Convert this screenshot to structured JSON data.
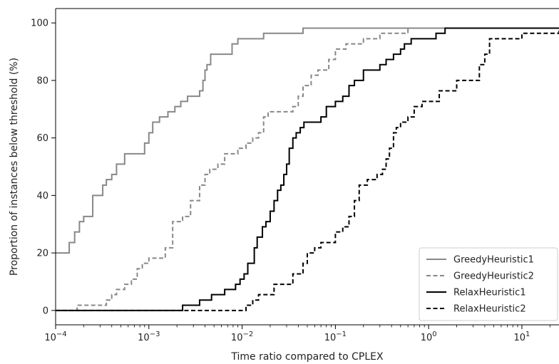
{
  "chart_data": {
    "type": "line",
    "xscale": "log",
    "xlim": [
      0.0001,
      25
    ],
    "ylim": [
      -5,
      105
    ],
    "xlabel": "Time ratio compared to CPLEX",
    "ylabel": "Proportion of instances below threshold (%)",
    "x_ticks": [
      {
        "value": 0.0001,
        "base": "10",
        "exp": "−4"
      },
      {
        "value": 0.001,
        "base": "10",
        "exp": "−3"
      },
      {
        "value": 0.01,
        "base": "10",
        "exp": "−2"
      },
      {
        "value": 0.1,
        "base": "10",
        "exp": "−1"
      },
      {
        "value": 1,
        "base": "10",
        "exp": "0"
      },
      {
        "value": 10,
        "base": "10",
        "exp": "1"
      }
    ],
    "y_ticks": [
      0,
      20,
      40,
      60,
      80,
      100
    ],
    "grid": false,
    "legend_position": "lower-right",
    "series": [
      {
        "name": "GreedyHeuristic1",
        "color": "#888888",
        "dash": "solid",
        "x": [
          0.0001,
          0.00013,
          0.00014,
          0.00016,
          0.00018,
          0.0002,
          0.00025,
          0.00032,
          0.00035,
          0.0004,
          0.00045,
          0.00055,
          0.00085,
          0.0009,
          0.001,
          0.0011,
          0.0013,
          0.0016,
          0.0019,
          0.0022,
          0.0026,
          0.0035,
          0.0038,
          0.004,
          0.0042,
          0.0046,
          0.0055,
          0.0078,
          0.009,
          0.011,
          0.017,
          0.028,
          0.045,
          0.32,
          0.5,
          25
        ],
        "y": [
          20,
          20,
          23.6,
          27.3,
          30.9,
          32.7,
          40,
          43.6,
          45.5,
          47.3,
          50.9,
          54.5,
          54.5,
          58.2,
          61.8,
          65.5,
          67.3,
          69.1,
          70.9,
          72.7,
          74.5,
          76.4,
          80,
          83.6,
          85.5,
          89.1,
          89.1,
          92.7,
          94.5,
          94.5,
          96.4,
          96.4,
          98.2,
          98.2,
          98.2,
          98.2
        ]
      },
      {
        "name": "GreedyHeuristic2",
        "color": "#888888",
        "dash": "dashed",
        "x": [
          0.0001,
          0.00013,
          0.00017,
          0.0003,
          0.00035,
          0.0004,
          0.00045,
          0.00055,
          0.00065,
          0.00075,
          0.00085,
          0.0009,
          0.001,
          0.0011,
          0.0015,
          0.0018,
          0.0023,
          0.0028,
          0.0035,
          0.004,
          0.0045,
          0.0055,
          0.0065,
          0.0075,
          0.009,
          0.011,
          0.013,
          0.015,
          0.017,
          0.019,
          0.024,
          0.035,
          0.04,
          0.045,
          0.055,
          0.065,
          0.085,
          0.1,
          0.13,
          0.2,
          0.3,
          0.6,
          25
        ],
        "y": [
          0,
          0,
          1.8,
          1.8,
          3.6,
          5.5,
          7.3,
          9.1,
          10.9,
          14.5,
          16.4,
          16.4,
          18.2,
          18.2,
          21.8,
          30.9,
          32.7,
          38.2,
          43.6,
          47.3,
          49.1,
          50.9,
          54.5,
          54.5,
          56.4,
          58.2,
          60,
          61.8,
          67.3,
          69.1,
          69.1,
          70.9,
          74.5,
          78.2,
          81.8,
          83.6,
          87.3,
          90.9,
          92.7,
          94.5,
          96.4,
          98.2,
          98.2
        ]
      },
      {
        "name": "RelaxHeuristic1",
        "color": "#000000",
        "dash": "solid",
        "x": [
          0.0001,
          0.0023,
          0.0035,
          0.0047,
          0.0065,
          0.0085,
          0.0095,
          0.0105,
          0.0115,
          0.0135,
          0.0145,
          0.0165,
          0.018,
          0.02,
          0.022,
          0.024,
          0.026,
          0.028,
          0.03,
          0.032,
          0.035,
          0.038,
          0.042,
          0.046,
          0.07,
          0.08,
          0.1,
          0.12,
          0.14,
          0.16,
          0.2,
          0.3,
          0.35,
          0.42,
          0.5,
          0.55,
          0.65,
          0.8,
          1.2,
          1.5,
          2.0,
          25
        ],
        "y": [
          0,
          1.8,
          3.6,
          5.5,
          7.3,
          9.1,
          10.9,
          12.7,
          16.4,
          21.8,
          25.5,
          29.1,
          30.9,
          34.5,
          38.2,
          41.8,
          43.6,
          47.3,
          50.9,
          56.4,
          60,
          61.8,
          63.6,
          65.5,
          67.3,
          70.9,
          72.7,
          74.5,
          78.2,
          80,
          83.6,
          85.5,
          87.3,
          89.1,
          90.9,
          92.7,
          94.5,
          94.5,
          96.4,
          98.2,
          98.2,
          98.2
        ]
      },
      {
        "name": "RelaxHeuristic2",
        "color": "#000000",
        "dash": "dashed",
        "x": [
          0.0001,
          0.01,
          0.011,
          0.013,
          0.015,
          0.022,
          0.025,
          0.035,
          0.045,
          0.05,
          0.06,
          0.07,
          0.08,
          0.1,
          0.12,
          0.14,
          0.16,
          0.18,
          0.2,
          0.22,
          0.25,
          0.28,
          0.32,
          0.35,
          0.38,
          0.42,
          0.45,
          0.5,
          0.6,
          0.7,
          0.85,
          1.0,
          1.3,
          1.6,
          2.0,
          2.8,
          3.5,
          4.0,
          4.5,
          6.5,
          10,
          13,
          25
        ],
        "y": [
          0,
          0,
          1.8,
          3.6,
          5.5,
          9.1,
          9.1,
          12.7,
          16.4,
          20,
          21.8,
          23.6,
          23.6,
          27.3,
          29.1,
          32.7,
          38.2,
          43.6,
          43.6,
          45.5,
          45.5,
          47.3,
          49.1,
          52.7,
          56.4,
          61.8,
          63.6,
          65.5,
          67.3,
          70.9,
          72.7,
          72.7,
          76.4,
          76.4,
          80,
          80,
          85.5,
          89.1,
          94.5,
          94.5,
          96.4,
          96.4,
          98.2
        ]
      }
    ]
  }
}
